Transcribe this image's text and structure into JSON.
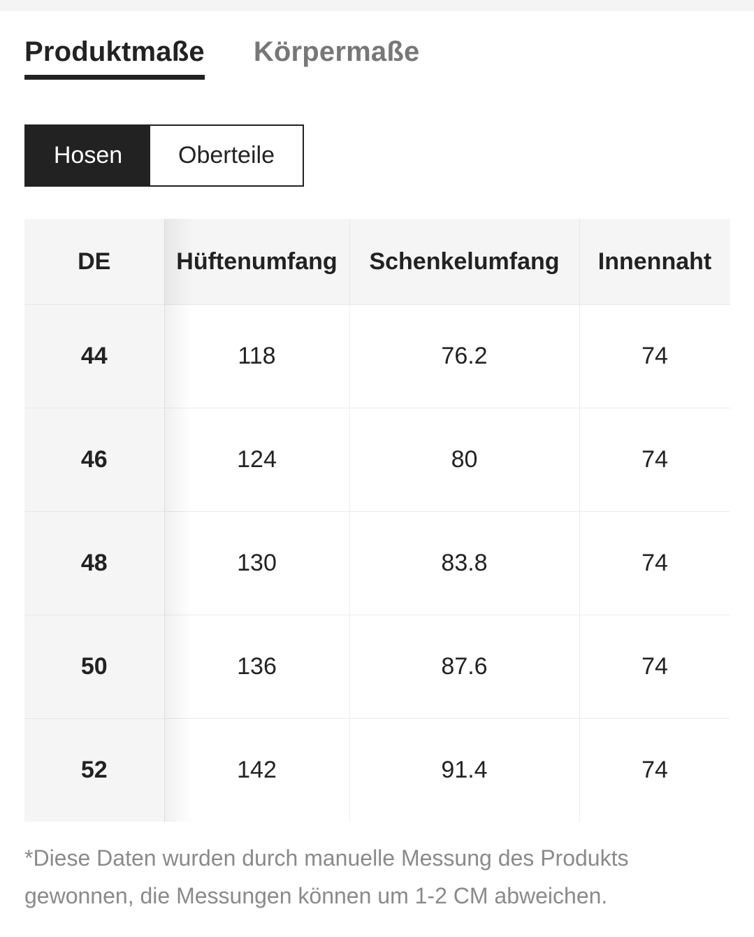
{
  "tabs": [
    {
      "label": "Produktmaße",
      "active": true
    },
    {
      "label": "Körpermaße",
      "active": false
    }
  ],
  "segments": [
    {
      "label": "Hosen",
      "selected": true
    },
    {
      "label": "Oberteile",
      "selected": false
    }
  ],
  "table": {
    "headers": [
      "DE",
      "Hüftenumfang",
      "Schenkelumfang",
      "Innennaht"
    ],
    "rows": [
      [
        "44",
        "118",
        "76.2",
        "74"
      ],
      [
        "46",
        "124",
        "80",
        "74"
      ],
      [
        "48",
        "130",
        "83.8",
        "74"
      ],
      [
        "50",
        "136",
        "87.6",
        "74"
      ],
      [
        "52",
        "142",
        "91.4",
        "74"
      ]
    ]
  },
  "note": "*Diese Daten wurden durch manuelle Messung des Produkts gewonnen, die Messungen können um 1-2 CM abweichen.",
  "colors": {
    "active": "#222222",
    "inactive": "#777777",
    "header_bg": "#f5f5f5",
    "note": "#8a8a8a"
  }
}
